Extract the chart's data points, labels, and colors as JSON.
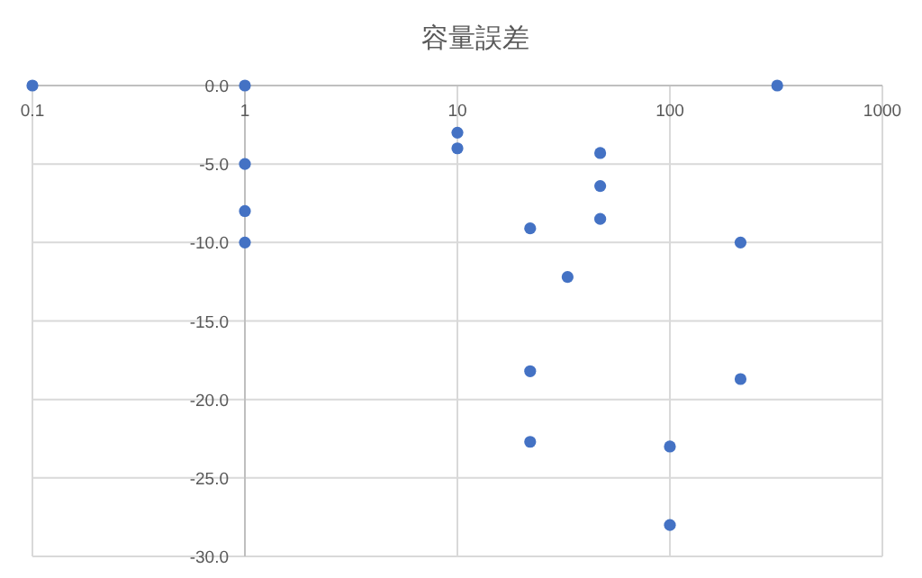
{
  "chart_data": {
    "type": "scatter",
    "title": "容量誤差",
    "x": [
      0.1,
      1,
      1,
      1,
      1,
      10,
      10,
      47,
      47,
      47,
      22,
      33,
      215,
      320,
      22,
      22,
      215,
      100,
      100
    ],
    "values": [
      0,
      0,
      -5,
      -8,
      -10,
      -3,
      -4,
      -4.3,
      -6.4,
      -8.5,
      -9.1,
      -12.2,
      -10,
      0,
      -18.2,
      -22.7,
      -18.7,
      -23,
      -28
    ],
    "color": "#4472c4",
    "marker": "circle",
    "log": "x",
    "grid": true,
    "xlim": [
      0.1,
      1000
    ],
    "xticks": [
      0.1,
      1,
      10,
      100,
      1000
    ],
    "ylim": [
      -30,
      0
    ],
    "yticks": [
      {
        "value": 0,
        "label": "0.0"
      },
      {
        "value": -5,
        "label": "-5.0"
      },
      {
        "value": -10,
        "label": "-10.0"
      },
      {
        "value": -15,
        "label": "-15.0"
      },
      {
        "value": -20,
        "label": "-20.0"
      },
      {
        "value": -25,
        "label": "-25.0"
      },
      {
        "value": -30,
        "label": "-30.0"
      }
    ]
  }
}
